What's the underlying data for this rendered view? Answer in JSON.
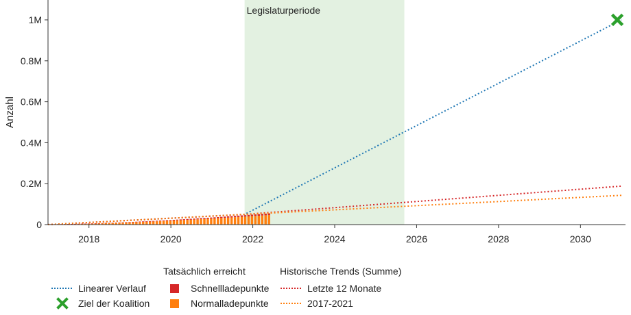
{
  "chart_data": {
    "type": "line",
    "ylabel": "Anzahl",
    "xlim": [
      2017.0,
      2031.1
    ],
    "ylim": [
      0,
      1000000
    ],
    "x_ticks": [
      2018,
      2020,
      2022,
      2024,
      2026,
      2028,
      2030
    ],
    "x_tick_labels": [
      "2018",
      "2020",
      "2022",
      "2024",
      "2026",
      "2028",
      "2030"
    ],
    "y_ticks": [
      0,
      200000,
      400000,
      600000,
      800000,
      1000000
    ],
    "y_tick_labels": [
      "0",
      "0.2M",
      "0.4M",
      "0.6M",
      "0.8M",
      "1M"
    ],
    "shaded_region": {
      "label": "Legislaturperiode",
      "x_start": 2021.8,
      "x_end": 2025.7,
      "color": "#e3f1e1"
    },
    "bars": {
      "x_start": 2017.0,
      "x_end": 2022.4,
      "step": 0.083,
      "y_start": 2000,
      "y_end": 55000,
      "series": [
        {
          "name": "Schnellladepunkte",
          "color": "#d62728",
          "share": 0.15
        },
        {
          "name": "Normalladepunkte",
          "color": "#ff7f0e",
          "share": 0.85
        }
      ]
    },
    "series": [
      {
        "name": "Linearer Verlauf",
        "color": "#1f77b4",
        "style": "dotted",
        "x": [
          2017.0,
          2021.8,
          2031.0
        ],
        "y": [
          0,
          50000,
          1000000
        ]
      },
      {
        "name": "Letzte 12 Monate",
        "color": "#d62728",
        "style": "dotted",
        "x": [
          2017.0,
          2021.8,
          2031.0
        ],
        "y": [
          0,
          50000,
          188000
        ]
      },
      {
        "name": "2017-2021",
        "color": "#ff7f0e",
        "style": "dotted",
        "x": [
          2017.0,
          2021.8,
          2031.0
        ],
        "y": [
          0,
          50000,
          143000
        ]
      }
    ],
    "target": {
      "name": "Ziel der Koalition",
      "x": 2030.9,
      "y": 1000000,
      "color": "#2ca02c",
      "marker": "x-icon"
    }
  },
  "legend": {
    "group_actual_title": "Tatsächlich erreicht",
    "group_trends_title": "Historische Trends (Summe)",
    "linear": "Linearer Verlauf",
    "target": "Ziel der Koalition",
    "fast": "Schnellladepunkte",
    "normal": "Normalladepunkte",
    "last12": "Letzte 12 Monate",
    "trend1721": "2017-2021"
  }
}
